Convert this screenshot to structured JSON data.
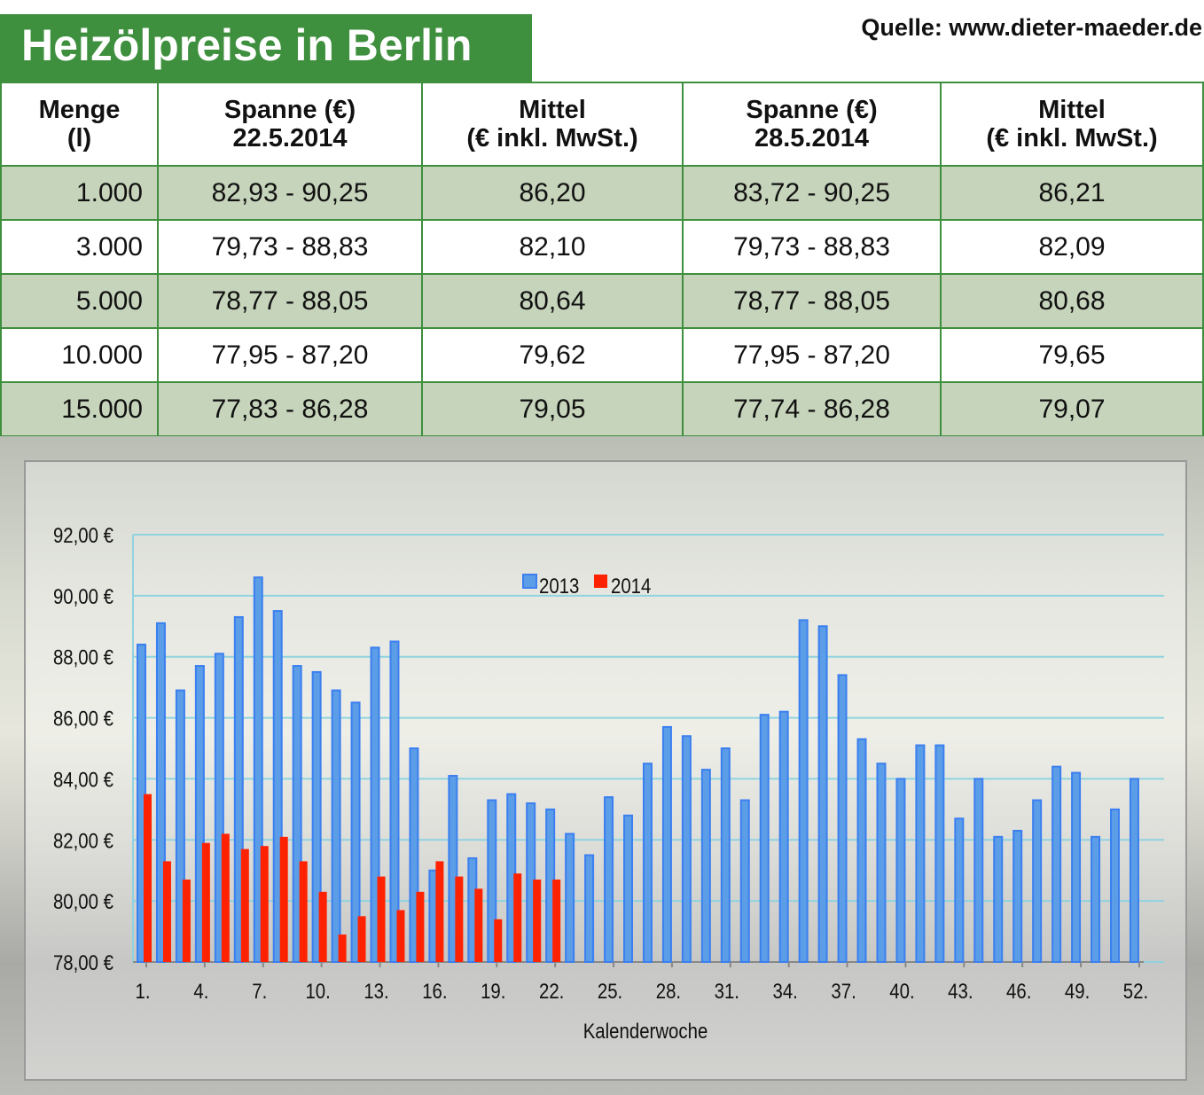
{
  "title": "Heizölpreise in Berlin",
  "source": "Quelle: www.dieter-maeder.de",
  "table": {
    "headers": [
      [
        "Menge",
        "(l)"
      ],
      [
        "Spanne (€)",
        "22.5.2014"
      ],
      [
        "Mittel",
        "(€ inkl. MwSt.)"
      ],
      [
        "Spanne (€)",
        "28.5.2014"
      ],
      [
        "Mittel",
        "(€ inkl. MwSt.)"
      ]
    ],
    "rows": [
      [
        "1.000",
        "82,93 - 90,25",
        "86,20",
        "83,72 - 90,25",
        "86,21"
      ],
      [
        "3.000",
        "79,73 - 88,83",
        "82,10",
        "79,73 - 88,83",
        "82,09"
      ],
      [
        "5.000",
        "78,77 - 88,05",
        "80,64",
        "78,77 - 88,05",
        "80,68"
      ],
      [
        "10.000",
        "77,95 - 87,20",
        "79,62",
        "77,95 - 87,20",
        "79,65"
      ],
      [
        "15.000",
        "77,83 - 86,28",
        "79,05",
        "77,74 - 86,28",
        "79,07"
      ]
    ]
  },
  "chart_data": {
    "type": "bar",
    "xlabel": "Kalenderwoche",
    "ylabel": "",
    "ylim": [
      78,
      92
    ],
    "yticks": [
      "78,00 €",
      "80,00 €",
      "82,00 €",
      "84,00 €",
      "86,00 €",
      "88,00 €",
      "90,00 €",
      "92,00 €"
    ],
    "xticks": [
      "1.",
      "4.",
      "7.",
      "10.",
      "13.",
      "16.",
      "19.",
      "22.",
      "25.",
      "28.",
      "31.",
      "34.",
      "37.",
      "40.",
      "43.",
      "46.",
      "49.",
      "52."
    ],
    "grid": true,
    "legend": "top-center",
    "series": [
      {
        "name": "2013",
        "color": "#3b7ff0",
        "values": [
          88.4,
          89.1,
          86.9,
          87.7,
          88.1,
          89.3,
          90.6,
          89.5,
          87.7,
          87.5,
          86.9,
          86.5,
          88.3,
          88.5,
          85.0,
          81.0,
          84.1,
          81.4,
          83.3,
          83.5,
          83.2,
          83.0,
          82.2,
          81.5,
          83.4,
          82.8,
          84.5,
          85.7,
          85.4,
          84.3,
          85.0,
          83.3,
          86.1,
          86.2,
          89.2,
          89.0,
          87.4,
          85.3,
          84.5,
          84.0,
          85.1,
          85.1,
          82.7,
          84.0,
          82.1,
          82.3,
          83.3,
          84.4,
          84.2,
          82.1,
          83.0,
          84.0
        ]
      },
      {
        "name": "2014",
        "color": "#ff2200",
        "values": [
          83.5,
          81.3,
          80.7,
          81.9,
          82.2,
          81.7,
          81.8,
          82.1,
          81.3,
          80.3,
          78.9,
          79.5,
          80.8,
          79.7,
          80.3,
          81.3,
          80.8,
          80.4,
          79.4,
          80.9,
          80.7,
          80.7
        ]
      }
    ]
  }
}
